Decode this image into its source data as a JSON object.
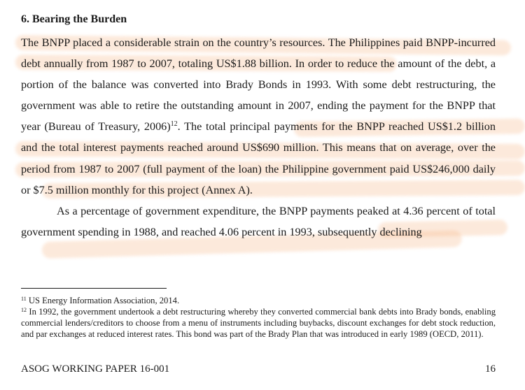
{
  "section": {
    "heading": "6. Bearing the Burden"
  },
  "body": {
    "p1_part1": "The BNPP placed a considerable strain on the country’s resources. The Philippines paid BNPP-incurred debt annually from 1987 to 2007, totaling US$1.88 billion. In order to reduce the amount of the debt, a portion of the balance was converted into Brady Bonds in 1993. With some debt restructuring, the government was able to retire the outstanding amount in 2007, ending the payment for the BNPP that year (Bureau of Treasury, 2006)",
    "p1_ref": "12",
    "p1_part2": ". The total principal payments for the BNPP reached US$1.2 billion and the total interest payments reached around US$690 million. This means that on average, over the period from 1987 to 2007 (full payment of the loan) the Philippine government paid US$246,000 daily or $7.5 million monthly for this project (Annex A).",
    "p2": "As a percentage of government expenditure, the BNPP payments peaked at 4.36 percent of total government spending in 1988, and reached 4.06 percent in 1993, subsequently declining"
  },
  "footnotes": {
    "fn11_num": "11",
    "fn11_text": "US Energy Information Association, 2014.",
    "fn12_num": "12",
    "fn12_text": "In 1992, the government undertook a debt restructuring whereby they converted commercial bank debts into Brady bonds, enabling commercial lenders/creditors to choose from a menu of instruments including buybacks, discount exchanges for debt stock reduction, and par exchanges at reduced interest rates. This bond was part of the Brady Plan that was introduced in early 1989 (OECD, 2011)."
  },
  "footer": {
    "series": "ASOG WORKING PAPER 16-001",
    "page_number": "16"
  },
  "colors": {
    "highlight": "#f6b27f",
    "text": "#1a1a1a"
  }
}
